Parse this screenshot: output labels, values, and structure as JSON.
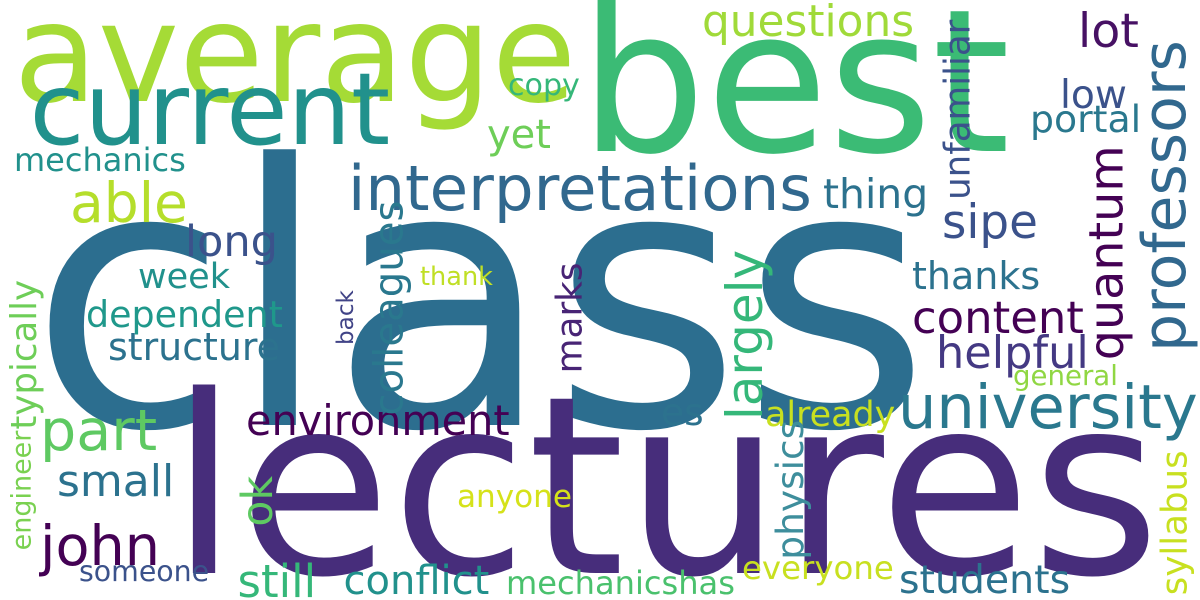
{
  "words": [
    {
      "text": "class",
      "color": "#2c6e8f",
      "rotate": 0
    },
    {
      "text": "lectures",
      "color": "#472d7b",
      "rotate": 0
    },
    {
      "text": "best",
      "color": "#3bbb75",
      "rotate": 0
    },
    {
      "text": "average",
      "color": "#a5db36",
      "rotate": 0
    },
    {
      "text": "current",
      "color": "#21918c",
      "rotate": 0
    },
    {
      "text": "interpretations",
      "color": "#31688e",
      "rotate": 0
    },
    {
      "text": "university",
      "color": "#2a788e",
      "rotate": 0
    },
    {
      "text": "professors",
      "color": "#31688e",
      "rotate": -90
    },
    {
      "text": "quantum",
      "color": "#440154",
      "rotate": -90
    },
    {
      "text": "sipe",
      "color": "#3b528b",
      "rotate": 0
    },
    {
      "text": "environment",
      "color": "#440154",
      "rotate": 0
    },
    {
      "text": "john",
      "color": "#440154",
      "rotate": 0
    },
    {
      "text": "part",
      "color": "#5ec962",
      "rotate": 0
    },
    {
      "text": "able",
      "color": "#b5de2b",
      "rotate": 0
    },
    {
      "text": "content",
      "color": "#440154",
      "rotate": 0
    },
    {
      "text": "helpful",
      "color": "#443983",
      "rotate": 0
    },
    {
      "text": "dependent",
      "color": "#1f988b",
      "rotate": 0
    },
    {
      "text": "long",
      "color": "#3b528b",
      "rotate": 0
    },
    {
      "text": "questions",
      "color": "#a0da39",
      "rotate": 0
    },
    {
      "text": "thing",
      "color": "#2c728e",
      "rotate": 0
    },
    {
      "text": "thanks",
      "color": "#2c728e",
      "rotate": 0
    },
    {
      "text": "students",
      "color": "#2c728e",
      "rotate": 0
    },
    {
      "text": "small",
      "color": "#2c728e",
      "rotate": 0
    },
    {
      "text": "structure",
      "color": "#2c728e",
      "rotate": 0
    },
    {
      "text": "mechanics",
      "color": "#21918c",
      "rotate": 0
    },
    {
      "text": "copy",
      "color": "#35b779",
      "rotate": 0
    },
    {
      "text": "yet",
      "color": "#6ece58",
      "rotate": 0
    },
    {
      "text": "lot",
      "color": "#471164",
      "rotate": 0
    },
    {
      "text": "low",
      "color": "#3b528b",
      "rotate": 0
    },
    {
      "text": "portal",
      "color": "#2a788e",
      "rotate": 0
    },
    {
      "text": "unfamiliar",
      "color": "#3b528b",
      "rotate": -90
    },
    {
      "text": "week",
      "color": "#21918c",
      "rotate": 0
    },
    {
      "text": "thank",
      "color": "#c0df25",
      "rotate": 0
    },
    {
      "text": "back",
      "color": "#414487",
      "rotate": -90
    },
    {
      "text": "colleagues",
      "color": "#2a788e",
      "rotate": -90
    },
    {
      "text": "marks",
      "color": "#482475",
      "rotate": -90
    },
    {
      "text": "largely",
      "color": "#35b779",
      "rotate": -90
    },
    {
      "text": "typically",
      "color": "#6ece58",
      "rotate": -90
    },
    {
      "text": "engineer",
      "color": "#7ad151",
      "rotate": -90
    },
    {
      "text": "general",
      "color": "#90d743",
      "rotate": 0
    },
    {
      "text": "es",
      "color": "#2c728e",
      "rotate": 0
    },
    {
      "text": "already",
      "color": "#c8e020",
      "rotate": 0
    },
    {
      "text": "ok",
      "color": "#5ec962",
      "rotate": -90
    },
    {
      "text": "anyone",
      "color": "#d5e21a",
      "rotate": 0
    },
    {
      "text": "physics",
      "color": "#3e8e9c",
      "rotate": -90
    },
    {
      "text": "syllabus",
      "color": "#c8e020",
      "rotate": -90
    },
    {
      "text": "someone",
      "color": "#3b528b",
      "rotate": 0
    },
    {
      "text": "still",
      "color": "#35b779",
      "rotate": 0
    },
    {
      "text": "conflict",
      "color": "#21918c",
      "rotate": 0
    },
    {
      "text": "mechanicshas",
      "color": "#4ac16d",
      "rotate": 0
    },
    {
      "text": "everyone",
      "color": "#c8e020",
      "rotate": 0
    }
  ]
}
